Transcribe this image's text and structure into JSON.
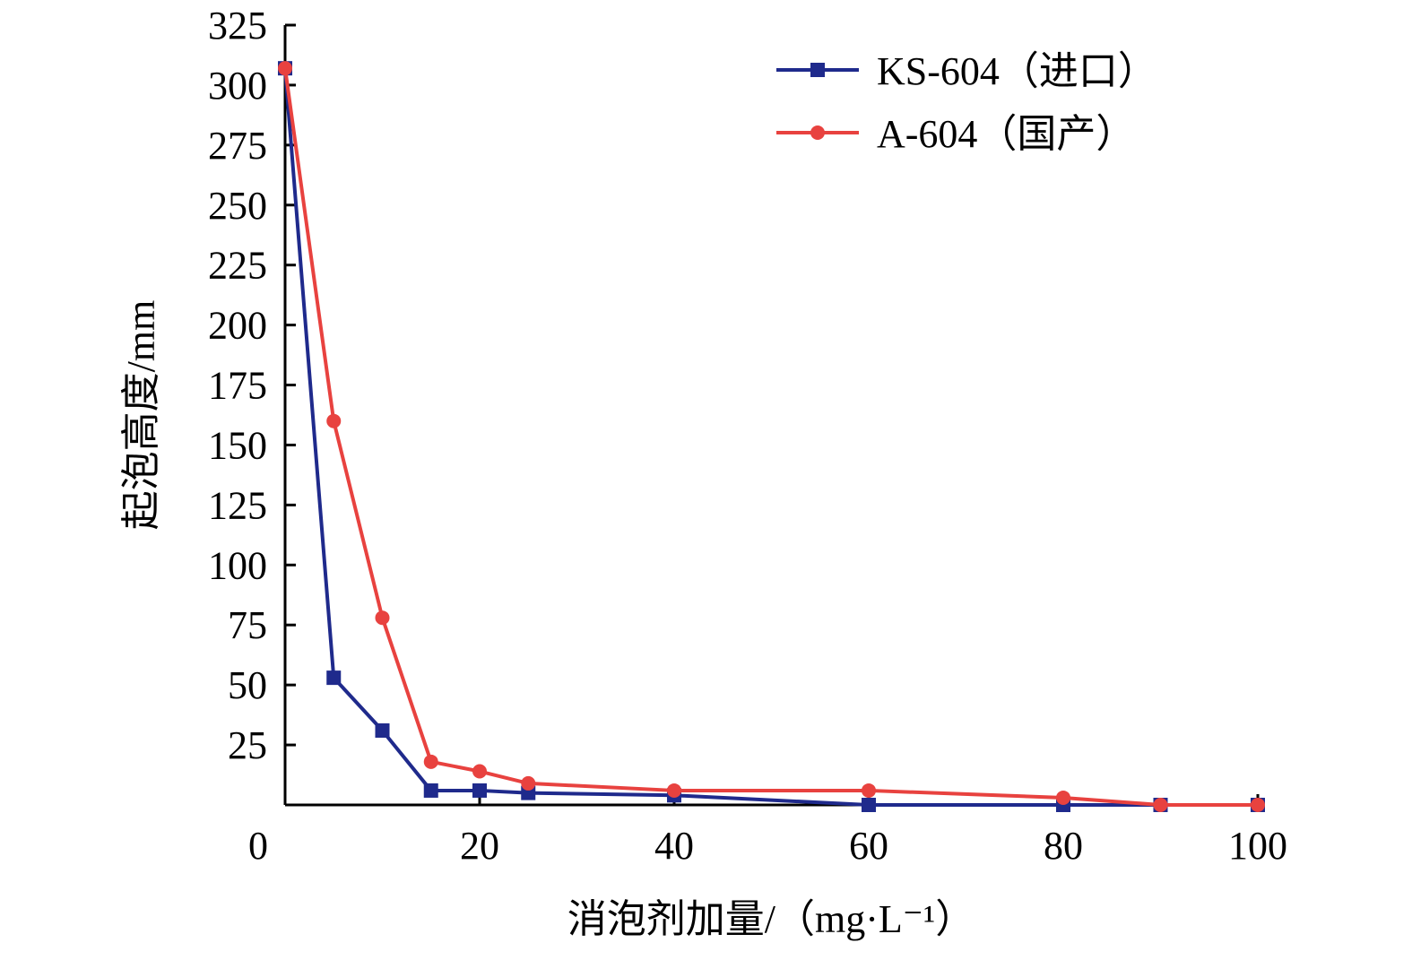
{
  "chart_data": {
    "type": "line",
    "title": "",
    "xlabel": "消泡剂加量/（mg·L⁻¹）",
    "ylabel": "起泡高度/mm",
    "xlim": [
      0,
      100
    ],
    "ylim": [
      0,
      325
    ],
    "x_ticks": [
      "0",
      "20",
      "40",
      "60",
      "80",
      "100"
    ],
    "x_tick_values": [
      0,
      20,
      40,
      60,
      80,
      100
    ],
    "y_ticks": [
      "25",
      "50",
      "75",
      "100",
      "125",
      "150",
      "175",
      "200",
      "225",
      "250",
      "275",
      "300",
      "325"
    ],
    "y_tick_values": [
      25,
      50,
      75,
      100,
      125,
      150,
      175,
      200,
      225,
      250,
      275,
      300,
      325
    ],
    "grid": false,
    "legend_position": "top-right",
    "series": [
      {
        "name": "KS-604（进口）",
        "color": "#1f2a8c",
        "marker": "square",
        "x": [
          0,
          5,
          10,
          15,
          20,
          25,
          40,
          60,
          80,
          90,
          100
        ],
        "y": [
          307,
          53,
          31,
          6,
          6,
          5,
          4,
          0,
          0,
          0,
          0
        ]
      },
      {
        "name": "A-604（国产）",
        "color": "#e8423f",
        "marker": "circle",
        "x": [
          0,
          5,
          10,
          15,
          20,
          25,
          40,
          60,
          80,
          90,
          100
        ],
        "y": [
          307,
          160,
          78,
          18,
          14,
          9,
          6,
          6,
          3,
          0,
          0
        ]
      }
    ]
  }
}
